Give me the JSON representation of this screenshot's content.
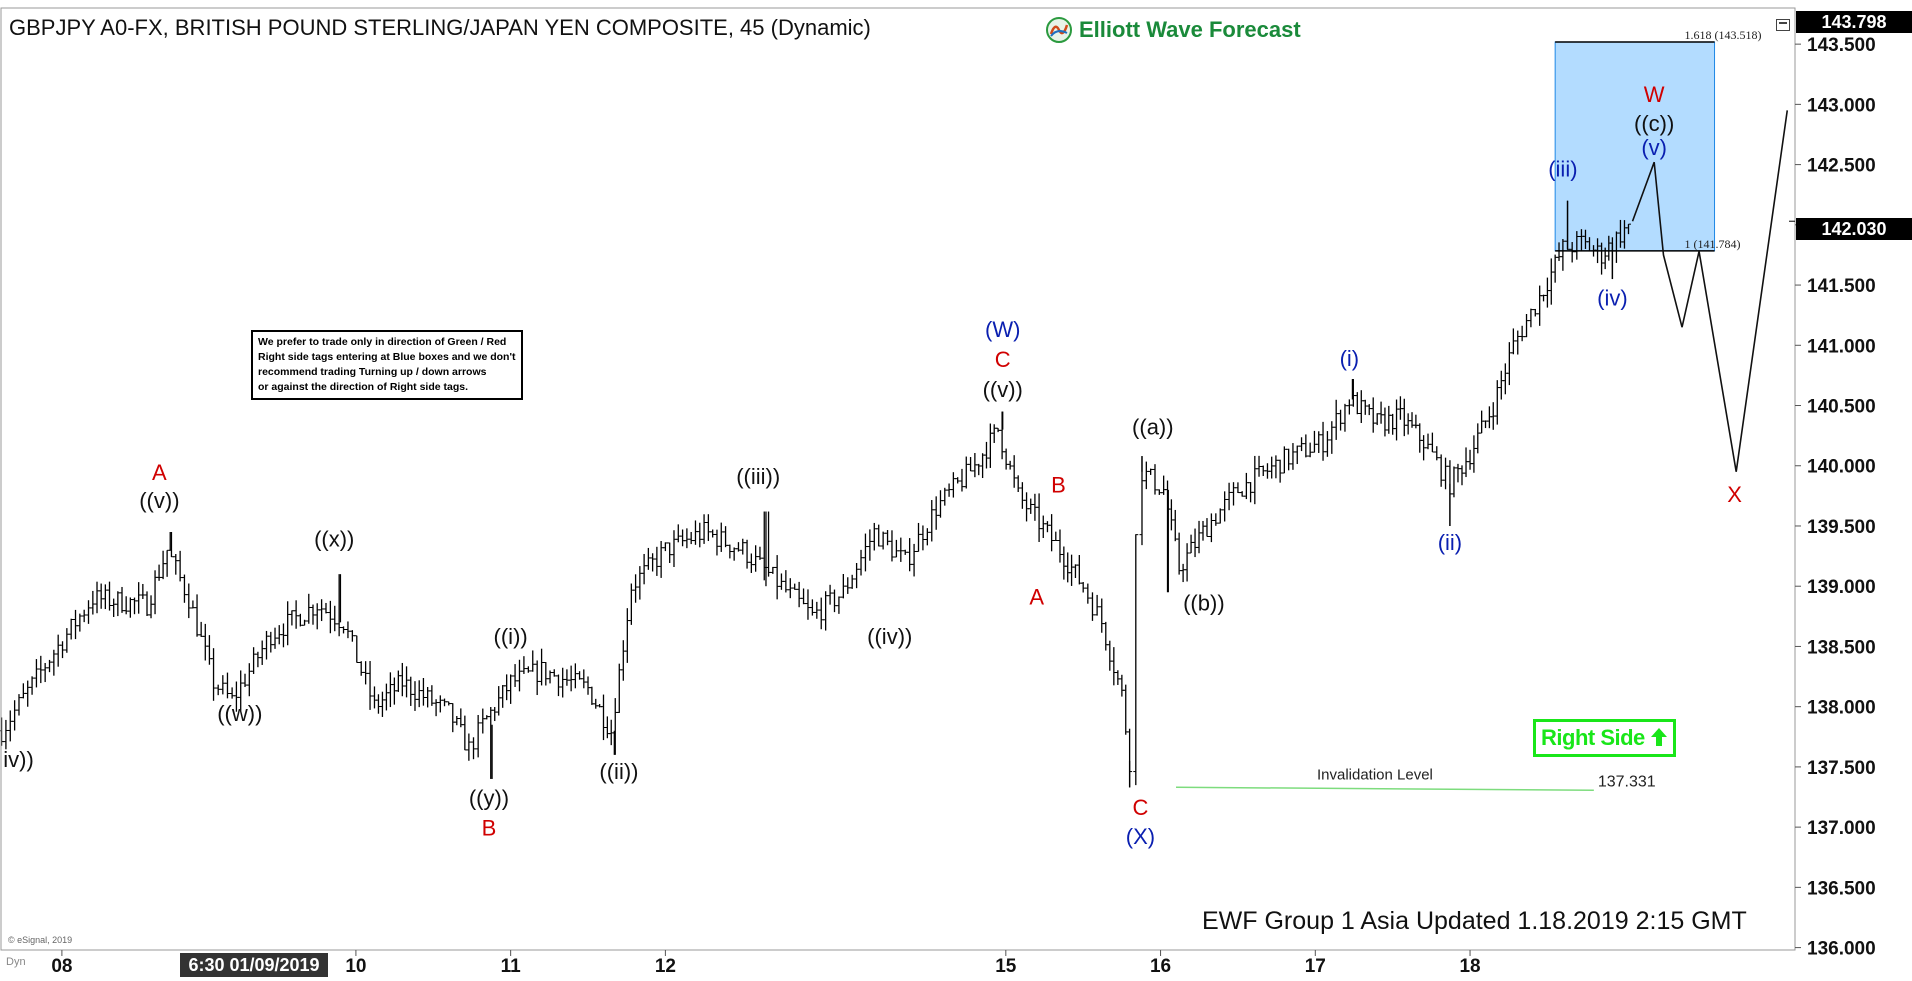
{
  "title": "GBPJPY A0-FX, BRITISH POUND STERLING/JAPAN YEN COMPOSITE, 45 (Dynamic)",
  "logo": {
    "text": "Elliott Wave Forecast",
    "icon": "ewf-logo-icon"
  },
  "note": {
    "lines": [
      "We prefer to trade only in direction of Green / Red",
      "Right side tags entering at Blue boxes and we don't",
      "recommend trading Turning up / down arrows",
      "or against the direction of Right side tags."
    ]
  },
  "right_side_tag": {
    "text": "Right Side",
    "icon": "up-arrow-icon",
    "color": "#19e619"
  },
  "footer": "EWF Group 1 Asia Updated 1.18.2019 2:15 GMT",
  "copyright": "© eSignal, 2019",
  "dyn_label": "Dyn",
  "price_tags": {
    "top": "143.798",
    "current": "142.030"
  },
  "time_tag": "6:30 01/09/2019",
  "chart_data": {
    "type": "bar",
    "y_ticks": [
      "143.500",
      "143.000",
      "142.500",
      "142.000",
      "141.500",
      "141.000",
      "140.500",
      "140.000",
      "139.500",
      "139.000",
      "138.500",
      "138.000",
      "137.500",
      "137.000",
      "136.500",
      "136.000"
    ],
    "y_tick_values": [
      143.5,
      143.0,
      142.5,
      142.0,
      141.5,
      141.0,
      140.5,
      140.0,
      139.5,
      139.0,
      138.5,
      138.0,
      137.5,
      137.0,
      136.5,
      136.0
    ],
    "ylim": [
      135.98,
      143.8
    ],
    "x_ticks": [
      "08",
      "10",
      "11",
      "12",
      "15",
      "16",
      "17",
      "18"
    ],
    "x_tick_days": [
      7.9,
      9.8,
      10.8,
      11.8,
      14.0,
      15.0,
      16.0,
      17.0
    ],
    "xlim": [
      7.5,
      19.1
    ],
    "current_price": 142.03,
    "fib_box": {
      "x_start": 17.55,
      "x_end": 18.58,
      "low": 141.784,
      "high": 143.518,
      "color": "#b3dcff",
      "labels": [
        "1.618 (143.518)",
        "1 (141.784)"
      ]
    },
    "invalidation": {
      "label": "Invalidation Level",
      "value": "137.331",
      "price": 137.331,
      "x_start": 15.1,
      "x_end": 17.8,
      "color": "#7ddc7d"
    },
    "projection_path": [
      {
        "x": 18.05,
        "y": 142.03
      },
      {
        "x": 18.19,
        "y": 142.52
      },
      {
        "x": 18.25,
        "y": 141.75
      },
      {
        "x": 18.37,
        "y": 141.15
      },
      {
        "x": 18.48,
        "y": 141.78
      },
      {
        "x": 18.72,
        "y": 139.95
      },
      {
        "x": 19.05,
        "y": 142.95
      }
    ],
    "anchors": [
      {
        "x": 7.51,
        "y": 137.8
      },
      {
        "x": 7.82,
        "y": 138.4
      },
      {
        "x": 8.1,
        "y": 138.9
      },
      {
        "x": 8.45,
        "y": 138.85
      },
      {
        "x": 8.58,
        "y": 139.3
      },
      {
        "x": 8.72,
        "y": 138.9
      },
      {
        "x": 8.88,
        "y": 138.2
      },
      {
        "x": 9.0,
        "y": 138.05
      },
      {
        "x": 9.25,
        "y": 138.6
      },
      {
        "x": 9.55,
        "y": 138.85
      },
      {
        "x": 9.72,
        "y": 138.7
      },
      {
        "x": 9.92,
        "y": 138.0
      },
      {
        "x": 10.1,
        "y": 138.2
      },
      {
        "x": 10.4,
        "y": 137.95
      },
      {
        "x": 10.53,
        "y": 137.65
      },
      {
        "x": 10.62,
        "y": 137.85
      },
      {
        "x": 10.8,
        "y": 138.2
      },
      {
        "x": 11.0,
        "y": 138.3
      },
      {
        "x": 11.3,
        "y": 138.15
      },
      {
        "x": 11.45,
        "y": 137.8
      },
      {
        "x": 11.58,
        "y": 139.0
      },
      {
        "x": 11.8,
        "y": 139.3
      },
      {
        "x": 12.05,
        "y": 139.45
      },
      {
        "x": 12.3,
        "y": 139.3
      },
      {
        "x": 12.55,
        "y": 139.0
      },
      {
        "x": 12.75,
        "y": 138.75
      },
      {
        "x": 12.95,
        "y": 138.95
      },
      {
        "x": 13.15,
        "y": 139.45
      },
      {
        "x": 13.35,
        "y": 139.2
      },
      {
        "x": 13.55,
        "y": 139.65
      },
      {
        "x": 13.8,
        "y": 140.0
      },
      {
        "x": 13.95,
        "y": 140.3
      },
      {
        "x": 14.08,
        "y": 139.75
      },
      {
        "x": 14.35,
        "y": 139.3
      },
      {
        "x": 14.5,
        "y": 139.0
      },
      {
        "x": 14.62,
        "y": 138.7
      },
      {
        "x": 14.75,
        "y": 138.1
      },
      {
        "x": 14.8,
        "y": 137.55
      },
      {
        "x": 14.84,
        "y": 139.4
      },
      {
        "x": 14.88,
        "y": 139.95
      },
      {
        "x": 15.02,
        "y": 139.8
      },
      {
        "x": 15.12,
        "y": 139.15
      },
      {
        "x": 15.3,
        "y": 139.5
      },
      {
        "x": 15.5,
        "y": 139.8
      },
      {
        "x": 15.8,
        "y": 140.05
      },
      {
        "x": 16.05,
        "y": 140.2
      },
      {
        "x": 16.22,
        "y": 140.55
      },
      {
        "x": 16.4,
        "y": 140.35
      },
      {
        "x": 16.55,
        "y": 140.4
      },
      {
        "x": 16.7,
        "y": 140.2
      },
      {
        "x": 16.87,
        "y": 139.85
      },
      {
        "x": 17.0,
        "y": 140.1
      },
      {
        "x": 17.15,
        "y": 140.5
      },
      {
        "x": 17.28,
        "y": 141.0
      },
      {
        "x": 17.45,
        "y": 141.4
      },
      {
        "x": 17.6,
        "y": 141.8
      },
      {
        "x": 17.72,
        "y": 141.85
      },
      {
        "x": 17.85,
        "y": 141.75
      },
      {
        "x": 17.92,
        "y": 141.85
      },
      {
        "x": 18.05,
        "y": 142.03
      }
    ],
    "key_points": [
      {
        "x": 8.6,
        "y": 139.45
      },
      {
        "x": 9.7,
        "y": 139.1
      },
      {
        "x": 10.68,
        "y": 137.4
      },
      {
        "x": 11.47,
        "y": 137.6
      },
      {
        "x": 12.45,
        "y": 139.62
      },
      {
        "x": 13.98,
        "y": 140.45
      },
      {
        "x": 14.8,
        "y": 137.33
      },
      {
        "x": 14.88,
        "y": 140.08
      },
      {
        "x": 15.05,
        "y": 138.95
      },
      {
        "x": 16.24,
        "y": 140.72
      },
      {
        "x": 16.87,
        "y": 139.5
      },
      {
        "x": 17.63,
        "y": 142.2
      },
      {
        "x": 17.92,
        "y": 141.55
      }
    ],
    "wave_labels": [
      {
        "text": "iv))",
        "x": 7.62,
        "y": 137.5,
        "color": "black"
      },
      {
        "text": "A",
        "x": 8.53,
        "y": 139.88,
        "color": "red"
      },
      {
        "text": "((v))",
        "x": 8.53,
        "y": 139.65,
        "color": "black"
      },
      {
        "text": "((w))",
        "x": 9.05,
        "y": 137.88,
        "color": "black"
      },
      {
        "text": "((x))",
        "x": 9.66,
        "y": 139.33,
        "color": "black"
      },
      {
        "text": "((y))",
        "x": 10.66,
        "y": 137.18,
        "color": "black"
      },
      {
        "text": "B",
        "x": 10.66,
        "y": 136.93,
        "color": "red"
      },
      {
        "text": "((i))",
        "x": 10.8,
        "y": 138.52,
        "color": "black"
      },
      {
        "text": "((ii))",
        "x": 11.5,
        "y": 137.4,
        "color": "black"
      },
      {
        "text": "((iii))",
        "x": 12.4,
        "y": 139.85,
        "color": "black"
      },
      {
        "text": "((iv))",
        "x": 13.25,
        "y": 138.52,
        "color": "black"
      },
      {
        "text": "(W)",
        "x": 13.98,
        "y": 141.07,
        "color": "blue"
      },
      {
        "text": "C",
        "x": 13.98,
        "y": 140.82,
        "color": "red"
      },
      {
        "text": "((v))",
        "x": 13.98,
        "y": 140.57,
        "color": "black"
      },
      {
        "text": "B",
        "x": 14.34,
        "y": 139.78,
        "color": "red"
      },
      {
        "text": "A",
        "x": 14.2,
        "y": 138.85,
        "color": "red"
      },
      {
        "text": "((a))",
        "x": 14.95,
        "y": 140.26,
        "color": "black"
      },
      {
        "text": "((b))",
        "x": 15.28,
        "y": 138.8,
        "color": "black"
      },
      {
        "text": "C",
        "x": 14.87,
        "y": 137.1,
        "color": "red"
      },
      {
        "text": "(X)",
        "x": 14.87,
        "y": 136.86,
        "color": "blue"
      },
      {
        "text": "(i)",
        "x": 16.22,
        "y": 140.83,
        "color": "blue"
      },
      {
        "text": "(ii)",
        "x": 16.87,
        "y": 139.3,
        "color": "blue"
      },
      {
        "text": "(iii)",
        "x": 17.6,
        "y": 142.4,
        "color": "blue"
      },
      {
        "text": "(iv)",
        "x": 17.92,
        "y": 141.33,
        "color": "blue"
      },
      {
        "text": "W",
        "x": 18.19,
        "y": 143.02,
        "color": "red"
      },
      {
        "text": "((c))",
        "x": 18.19,
        "y": 142.78,
        "color": "black"
      },
      {
        "text": "(v)",
        "x": 18.19,
        "y": 142.58,
        "color": "blue"
      },
      {
        "text": "X",
        "x": 18.71,
        "y": 139.7,
        "color": "red"
      }
    ]
  }
}
